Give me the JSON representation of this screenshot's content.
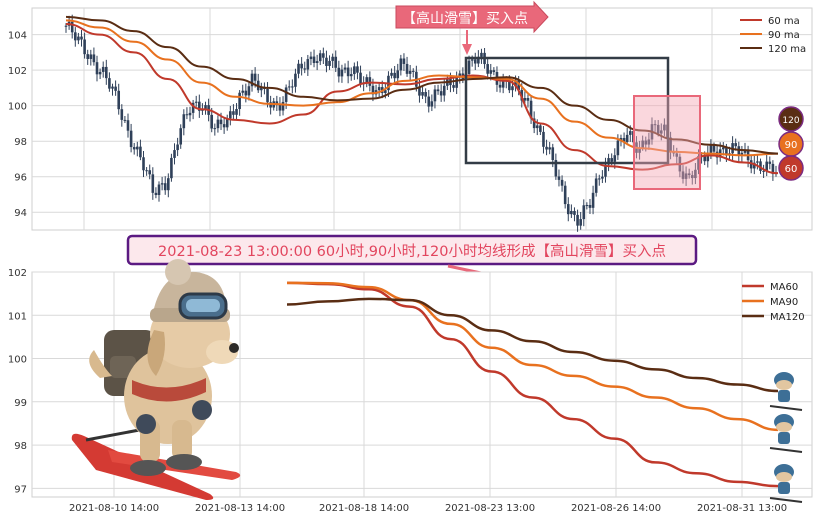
{
  "colors": {
    "ma60": "#c0392b",
    "ma90": "#e8711f",
    "ma120": "#5a2d13",
    "candle": "#2f4059",
    "grid": "#d9d9d9",
    "callout_fill": "#e9687a",
    "banner_border": "#5b1a82",
    "banner_text": "#e2455e"
  },
  "top_callout": "【高山滑雪】买入点",
  "banner": "2021-08-23 13:00:00 60小时,90小时,120小时均线形成【高山滑雪】买入点",
  "bubbles": [
    "120",
    "90",
    "60"
  ],
  "illustration": {
    "main": "skiing-dog-illustration",
    "small": "small-skier-icon"
  },
  "chart_data": [
    {
      "type": "candlestick",
      "ylim": [
        93,
        105.5
      ],
      "yticks": [
        94,
        96,
        98,
        100,
        102,
        104
      ],
      "grid": true,
      "legend_position": "top-right",
      "legend": [
        "60 ma",
        "90 ma",
        "120 ma"
      ],
      "price_path": [
        104.5,
        103.5,
        102.8,
        101.8,
        100.3,
        98.6,
        97.0,
        95.0,
        95.8,
        98.2,
        99.8,
        100.3,
        98.6,
        99.0,
        100.8,
        101.4,
        100.4,
        100.1,
        101.0,
        102.2,
        103.0,
        102.4,
        101.8,
        102.3,
        101.1,
        100.6,
        101.8,
        102.2,
        101.4,
        100.4,
        100.6,
        101.3,
        102.1,
        102.6,
        102.0,
        101.4,
        100.9,
        100.2,
        98.6,
        96.8,
        94.8,
        93.6,
        94.2,
        96.4,
        97.5,
        98.2,
        97.6,
        98.8,
        98.4,
        97.0,
        95.9,
        96.8,
        97.7,
        97.5,
        97.3,
        97.0,
        96.6,
        96.1
      ],
      "series": [
        {
          "name": "60 ma",
          "values": [
            104.6,
            104.0,
            103.0,
            101.5,
            99.8,
            99.2,
            99.0,
            99.5,
            100.8,
            101.3,
            101.2,
            101.5,
            101.7,
            101.4,
            99.0,
            97.5,
            96.6,
            96.4,
            96.7,
            97.2,
            96.8,
            96.2
          ]
        },
        {
          "name": "90 ma",
          "values": [
            104.8,
            104.4,
            103.6,
            102.6,
            101.3,
            100.5,
            100.1,
            100.0,
            100.2,
            100.7,
            101.4,
            101.7,
            101.6,
            101.5,
            100.4,
            99.1,
            98.2,
            97.6,
            97.4,
            97.3,
            97.2,
            97.3
          ]
        },
        {
          "name": "120 ma",
          "values": [
            105.0,
            104.8,
            104.2,
            103.3,
            102.2,
            101.5,
            101.0,
            100.5,
            100.3,
            100.4,
            100.9,
            101.3,
            101.5,
            101.6,
            101.0,
            100.0,
            99.2,
            98.6,
            98.1,
            97.8,
            97.5,
            97.3
          ]
        }
      ]
    },
    {
      "type": "line",
      "ylim": [
        96.8,
        102
      ],
      "yticks": [
        97,
        98,
        99,
        100,
        101,
        102
      ],
      "xticks": [
        "2021-08-10 14:00",
        "2021-08-13 14:00",
        "2021-08-18 14:00",
        "2021-08-23 13:00",
        "2021-08-26 14:00",
        "2021-08-31 13:00"
      ],
      "grid": true,
      "legend_position": "top-right",
      "series": [
        {
          "name": "MA60",
          "values": [
            101.75,
            101.72,
            101.6,
            101.2,
            100.45,
            99.7,
            99.1,
            98.6,
            98.15,
            97.6,
            97.35,
            97.15,
            97.05
          ]
        },
        {
          "name": "MA90",
          "values": [
            101.75,
            101.74,
            101.65,
            101.35,
            100.8,
            100.25,
            99.85,
            99.6,
            99.35,
            99.1,
            98.85,
            98.6,
            98.35
          ]
        },
        {
          "name": "MA120",
          "values": [
            101.25,
            101.32,
            101.38,
            101.35,
            101.0,
            100.65,
            100.4,
            100.15,
            99.95,
            99.75,
            99.55,
            99.4,
            99.25
          ]
        }
      ]
    }
  ]
}
